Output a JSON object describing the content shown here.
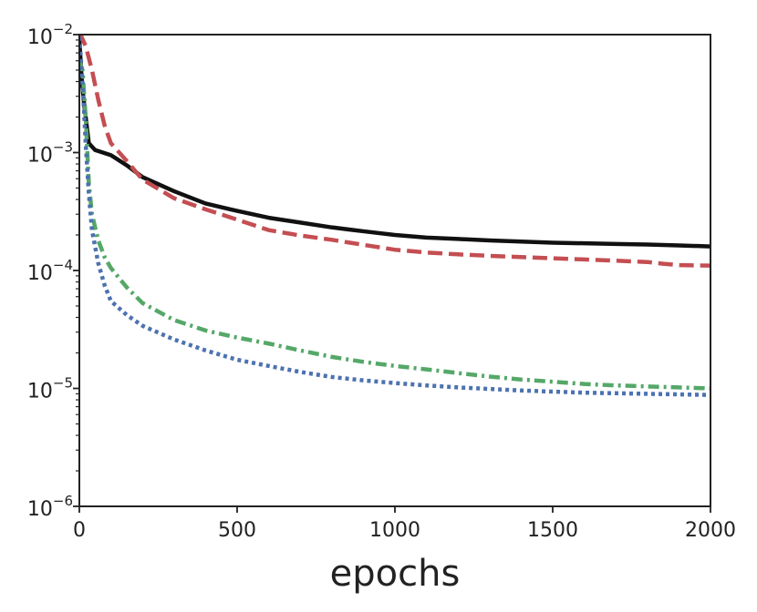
{
  "chart_data": {
    "type": "line",
    "xlabel": "epochs",
    "ylabel": "",
    "xlim": [
      0,
      2000
    ],
    "ylim": [
      1e-06,
      0.01
    ],
    "yscale": "log",
    "grid": false,
    "x_ticks": [
      0,
      500,
      1000,
      1500,
      2000
    ],
    "x_tick_labels": [
      "0",
      "500",
      "1000",
      "1500",
      "2000"
    ],
    "y_ticks": [
      1e-06,
      1e-05,
      0.0001,
      0.001,
      0.01
    ],
    "y_tick_labels": [
      {
        "base": "10",
        "exp": "−6"
      },
      {
        "base": "10",
        "exp": "−5"
      },
      {
        "base": "10",
        "exp": "−4"
      },
      {
        "base": "10",
        "exp": "−3"
      },
      {
        "base": "10",
        "exp": "−2"
      }
    ],
    "series": [
      {
        "color": "#111111",
        "dash": "solid",
        "points": [
          [
            0,
            0.009
          ],
          [
            8,
            0.004
          ],
          [
            15,
            0.0026
          ],
          [
            30,
            0.0012
          ],
          [
            50,
            0.00105
          ],
          [
            100,
            0.00095
          ],
          [
            150,
            0.00078
          ],
          [
            200,
            0.00062
          ],
          [
            300,
            0.00047
          ],
          [
            400,
            0.00037
          ],
          [
            500,
            0.00032
          ],
          [
            600,
            0.00028
          ],
          [
            700,
            0.000255
          ],
          [
            800,
            0.000232
          ],
          [
            900,
            0.000215
          ],
          [
            1000,
            0.0002
          ],
          [
            1100,
            0.00019
          ],
          [
            1200,
            0.000185
          ],
          [
            1300,
            0.00018
          ],
          [
            1400,
            0.000176
          ],
          [
            1500,
            0.000172
          ],
          [
            1600,
            0.00017
          ],
          [
            1700,
            0.000168
          ],
          [
            1800,
            0.000166
          ],
          [
            1900,
            0.000163
          ],
          [
            2000,
            0.00016
          ]
        ]
      },
      {
        "color": "#c44e52",
        "dash": "dashed",
        "points": [
          [
            0,
            0.0105
          ],
          [
            20,
            0.008
          ],
          [
            40,
            0.005
          ],
          [
            60,
            0.0028
          ],
          [
            80,
            0.0017
          ],
          [
            100,
            0.0012
          ],
          [
            150,
            0.00085
          ],
          [
            200,
            0.00059
          ],
          [
            300,
            0.00041
          ],
          [
            400,
            0.00033
          ],
          [
            500,
            0.00027
          ],
          [
            600,
            0.00022
          ],
          [
            700,
            0.000198
          ],
          [
            800,
            0.000182
          ],
          [
            900,
            0.000165
          ],
          [
            1000,
            0.00015
          ],
          [
            1100,
            0.000142
          ],
          [
            1200,
            0.000137
          ],
          [
            1300,
            0.000133
          ],
          [
            1400,
            0.00013
          ],
          [
            1500,
            0.000127
          ],
          [
            1600,
            0.000124
          ],
          [
            1700,
            0.000121
          ],
          [
            1800,
            0.000118
          ],
          [
            1850,
            0.000114
          ],
          [
            1900,
            0.000111
          ],
          [
            2000,
            0.00011
          ]
        ]
      },
      {
        "color": "#55a868",
        "dash": "dashdot",
        "points": [
          [
            0,
            0.006
          ],
          [
            10,
            0.005
          ],
          [
            20,
            0.002
          ],
          [
            30,
            0.00055
          ],
          [
            40,
            0.0003
          ],
          [
            60,
            0.00018
          ],
          [
            80,
            0.00013
          ],
          [
            100,
            0.000105
          ],
          [
            150,
            7.2e-05
          ],
          [
            200,
            5.3e-05
          ],
          [
            300,
            3.8e-05
          ],
          [
            400,
            3.1e-05
          ],
          [
            500,
            2.7e-05
          ],
          [
            600,
            2.4e-05
          ],
          [
            700,
            2.1e-05
          ],
          [
            800,
            1.85e-05
          ],
          [
            900,
            1.68e-05
          ],
          [
            1000,
            1.55e-05
          ],
          [
            1100,
            1.45e-05
          ],
          [
            1200,
            1.35e-05
          ],
          [
            1300,
            1.26e-05
          ],
          [
            1400,
            1.19e-05
          ],
          [
            1500,
            1.14e-05
          ],
          [
            1600,
            1.09e-05
          ],
          [
            1700,
            1.06e-05
          ],
          [
            1800,
            1.04e-05
          ],
          [
            1900,
            1.02e-05
          ],
          [
            2000,
            1e-05
          ]
        ]
      },
      {
        "color": "#4c72b0",
        "dash": "dotted",
        "points": [
          [
            0,
            0.0095
          ],
          [
            10,
            0.004
          ],
          [
            20,
            0.0012
          ],
          [
            30,
            0.00045
          ],
          [
            40,
            0.00022
          ],
          [
            60,
            0.000115
          ],
          [
            80,
            7.5e-05
          ],
          [
            100,
            5.5e-05
          ],
          [
            150,
            4.2e-05
          ],
          [
            200,
            3.4e-05
          ],
          [
            300,
            2.6e-05
          ],
          [
            400,
            2.1e-05
          ],
          [
            500,
            1.75e-05
          ],
          [
            600,
            1.55e-05
          ],
          [
            700,
            1.38e-05
          ],
          [
            800,
            1.25e-05
          ],
          [
            900,
            1.17e-05
          ],
          [
            1000,
            1.11e-05
          ],
          [
            1100,
            1.06e-05
          ],
          [
            1200,
            1.02e-05
          ],
          [
            1300,
            9.9e-06
          ],
          [
            1400,
            9.6e-06
          ],
          [
            1500,
            9.4e-06
          ],
          [
            1600,
            9.2e-06
          ],
          [
            1700,
            9.1e-06
          ],
          [
            1800,
            9e-06
          ],
          [
            1900,
            8.9e-06
          ],
          [
            2000,
            8.8e-06
          ]
        ]
      }
    ]
  }
}
